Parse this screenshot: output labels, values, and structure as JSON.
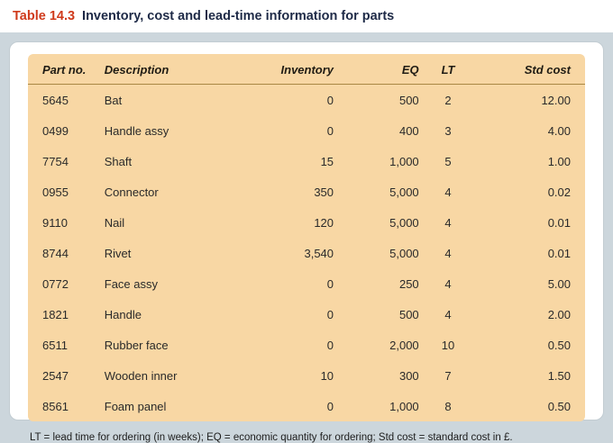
{
  "header": {
    "table_number": "Table 14.3",
    "title": "Inventory, cost and lead-time information for parts"
  },
  "table": {
    "columns": [
      "Part no.",
      "Description",
      "Inventory",
      "EQ",
      "LT",
      "Std cost"
    ],
    "rows": [
      [
        "5645",
        "Bat",
        "0",
        "500",
        "2",
        "12.00"
      ],
      [
        "0499",
        "Handle assy",
        "0",
        "400",
        "3",
        "4.00"
      ],
      [
        "7754",
        "Shaft",
        "15",
        "1,000",
        "5",
        "1.00"
      ],
      [
        "0955",
        "Connector",
        "350",
        "5,000",
        "4",
        "0.02"
      ],
      [
        "9110",
        "Nail",
        "120",
        "5,000",
        "4",
        "0.01"
      ],
      [
        "8744",
        "Rivet",
        "3,540",
        "5,000",
        "4",
        "0.01"
      ],
      [
        "0772",
        "Face assy",
        "0",
        "250",
        "4",
        "5.00"
      ],
      [
        "1821",
        "Handle",
        "0",
        "500",
        "4",
        "2.00"
      ],
      [
        "6511",
        "Rubber face",
        "0",
        "2,000",
        "10",
        "0.50"
      ],
      [
        "2547",
        "Wooden inner",
        "10",
        "300",
        "7",
        "1.50"
      ],
      [
        "8561",
        "Foam panel",
        "0",
        "1,000",
        "8",
        "0.50"
      ]
    ]
  },
  "footnote": "LT = lead time for ordering (in weeks); EQ = economic quantity for ordering; Std cost = standard cost in £.",
  "colors": {
    "page_bg": "#ccd6dc",
    "accent_red": "#cf3a1b",
    "title_color": "#1e2a47",
    "peach": "#f8d7a4",
    "panel_bg": "#ffffff",
    "table_text": "#2a2a2a",
    "header_rule": "#a98744"
  }
}
